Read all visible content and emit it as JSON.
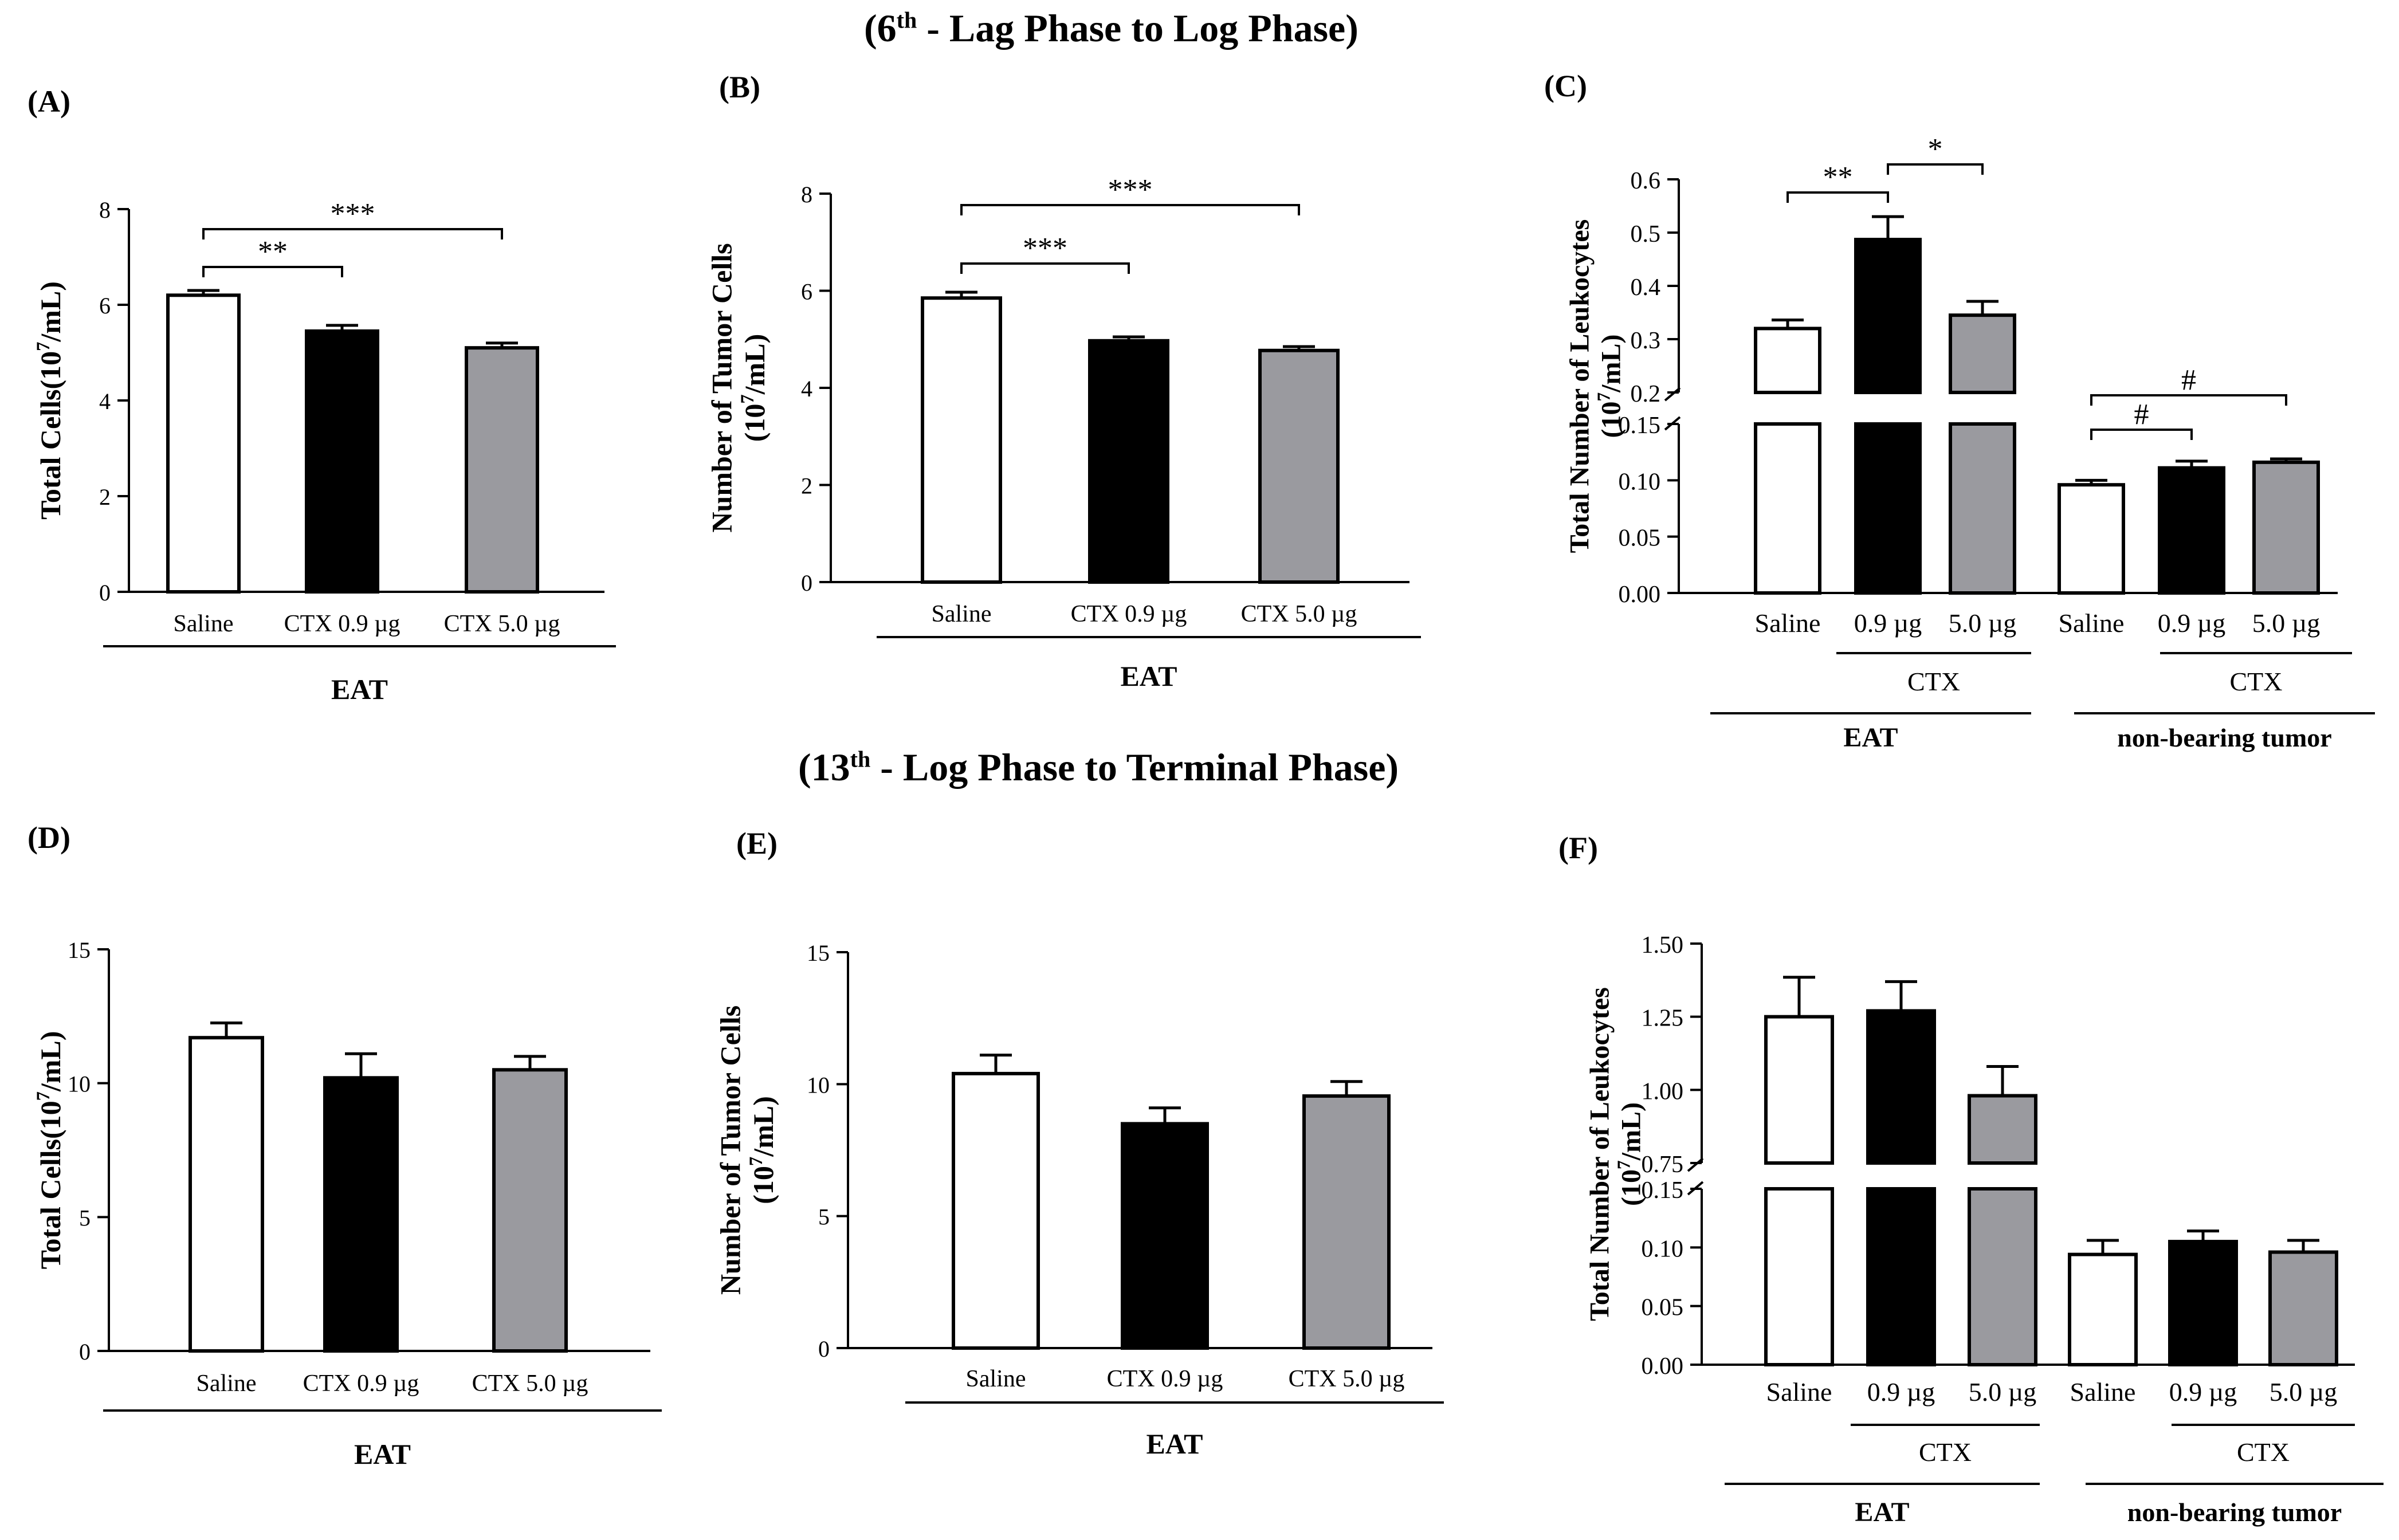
{
  "sections": [
    {
      "pre": "(6",
      "sup": "th",
      "post": " - Lag Phase to Log Phase)"
    },
    {
      "pre": "(13",
      "sup": "th",
      "post": " - Log Phase to Terminal Phase)"
    }
  ],
  "colors": {
    "saline": "#ffffff",
    "ctx09": "#000000",
    "ctx50": "#9a9a9f",
    "stroke": "#000000"
  },
  "chart_data": [
    {
      "id": "A",
      "panel": "(A)",
      "type": "bar",
      "ylabel": "Total Cells(10^7/mL)",
      "categories": [
        "Saline",
        "CTX 0.9 µg",
        "CTX 5.0 µg"
      ],
      "values": [
        6.2,
        5.45,
        5.1
      ],
      "errors": [
        0.1,
        0.12,
        0.1
      ],
      "ylim": [
        0,
        8
      ],
      "yticks": [
        0,
        2,
        4,
        6,
        8
      ],
      "group_label": "EAT",
      "sig": [
        {
          "from": 0,
          "to": 1,
          "label": "**"
        },
        {
          "from": 0,
          "to": 2,
          "label": "***"
        }
      ]
    },
    {
      "id": "B",
      "panel": "(B)",
      "type": "bar",
      "ylabel": [
        "Number of Tumor Cells",
        "(10^7/mL)"
      ],
      "categories": [
        "Saline",
        "CTX 0.9 µg",
        "CTX 5.0 µg"
      ],
      "values": [
        5.85,
        4.97,
        4.77
      ],
      "errors": [
        0.12,
        0.08,
        0.08
      ],
      "ylim": [
        0,
        8
      ],
      "yticks": [
        0,
        2,
        4,
        6,
        8
      ],
      "group_label": "EAT",
      "sig": [
        {
          "from": 0,
          "to": 1,
          "label": "***"
        },
        {
          "from": 0,
          "to": 2,
          "label": "***"
        }
      ]
    },
    {
      "id": "C",
      "panel": "(C)",
      "type": "bar",
      "ylabel": [
        "Total Number of Leukocytes",
        "(10^7/mL)"
      ],
      "categories": [
        "Saline",
        "0.9 µg",
        "5.0 µg",
        "Saline",
        "0.9 µg",
        "5.0 µg"
      ],
      "values": [
        0.32,
        0.487,
        0.345,
        0.096,
        0.111,
        0.116
      ],
      "errors": [
        0.016,
        0.043,
        0.026,
        0.004,
        0.006,
        0.003
      ],
      "broken_axis": {
        "lower": [
          0,
          0.15
        ],
        "upper": [
          0.2,
          0.6
        ]
      },
      "yticks_lower": [
        "0.00",
        "0.05",
        "0.10",
        "0.15"
      ],
      "yticks_upper": [
        "0.2",
        "0.3",
        "0.4",
        "0.5",
        "0.6"
      ],
      "sublabel": "CTX",
      "groups": [
        "EAT",
        "non-bearing tumor"
      ],
      "sig": [
        {
          "from": 0,
          "to": 1,
          "label": "**"
        },
        {
          "from": 1,
          "to": 2,
          "label": "*"
        },
        {
          "from": 3,
          "to": 4,
          "label": "#"
        },
        {
          "from": 3,
          "to": 5,
          "label": "#"
        }
      ]
    },
    {
      "id": "D",
      "panel": "(D)",
      "type": "bar",
      "ylabel": "Total Cells(10^7/mL)",
      "categories": [
        "Saline",
        "CTX 0.9 µg",
        "CTX 5.0 µg"
      ],
      "values": [
        11.7,
        10.2,
        10.5
      ],
      "errors": [
        0.55,
        0.9,
        0.5
      ],
      "ylim": [
        0,
        15
      ],
      "yticks": [
        0,
        5,
        10,
        15
      ],
      "group_label": "EAT",
      "sig": []
    },
    {
      "id": "E",
      "panel": "(E)",
      "type": "bar",
      "ylabel": [
        "Number of Tumor Cells",
        "(10^7/mL)"
      ],
      "categories": [
        "Saline",
        "CTX 0.9 µg",
        "CTX 5.0 µg"
      ],
      "values": [
        10.4,
        8.5,
        9.55
      ],
      "errors": [
        0.7,
        0.6,
        0.55
      ],
      "ylim": [
        0,
        15
      ],
      "yticks": [
        0,
        5,
        10,
        15
      ],
      "group_label": "EAT",
      "sig": []
    },
    {
      "id": "F",
      "panel": "(F)",
      "type": "bar",
      "ylabel": [
        "Total Number of Leukocytes",
        "(10^7/mL)"
      ],
      "categories": [
        "Saline",
        "0.9 µg",
        "5.0 µg",
        "Saline",
        "0.9 µg",
        "5.0 µg"
      ],
      "values": [
        1.25,
        1.27,
        0.98,
        0.094,
        0.105,
        0.096
      ],
      "errors": [
        0.135,
        0.1,
        0.1,
        0.012,
        0.009,
        0.01
      ],
      "broken_axis": {
        "lower": [
          0,
          0.15
        ],
        "upper": [
          0.75,
          1.5
        ]
      },
      "yticks_lower": [
        "0.00",
        "0.05",
        "0.10",
        "0.15"
      ],
      "yticks_upper": [
        "0.75",
        "1.00",
        "1.25",
        "1.50"
      ],
      "sublabel": "CTX",
      "groups": [
        "EAT",
        "non-bearing tumor"
      ],
      "sig": []
    }
  ]
}
